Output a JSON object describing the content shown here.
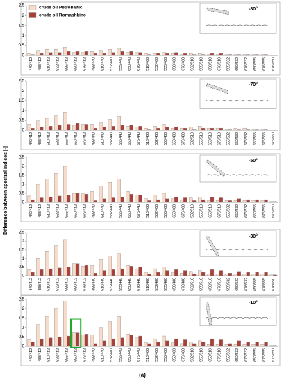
{
  "ylabel": "Difference between spectral indices [-]",
  "caption": "(a)",
  "chart_data": [
    {
      "type": "bar",
      "annotation": "-80°",
      "categories": [
        "440/412",
        "488/412",
        "510/412",
        "532/412",
        "555/412",
        "650/412",
        "676/412",
        "488/440",
        "510/440",
        "532/440",
        "555/440",
        "650/440",
        "676/440",
        "510/488",
        "532/488",
        "555/488",
        "650/488",
        "676/488",
        "532/510",
        "555/510",
        "650/510",
        "676/510",
        "555/532",
        "650/532",
        "676/532",
        "650/555",
        "676/555",
        "676/650"
      ],
      "ylim": [
        0,
        2.5
      ],
      "yticks": [
        0,
        0.5,
        1,
        1.5,
        2,
        2.5
      ],
      "legend": "upper left",
      "series": [
        {
          "name": "crude oil Petrobaltic",
          "color": "#f7dccb",
          "values": [
            0.1,
            0.25,
            0.3,
            0.3,
            0.4,
            0.15,
            0.15,
            0.2,
            0.25,
            0.3,
            0.35,
            0.15,
            0.15,
            0.1,
            0.1,
            0.15,
            0.1,
            0.05,
            0.1,
            0.1,
            0.05,
            0.05,
            0.05,
            0.05,
            0.05,
            0.05,
            0.05,
            0.02
          ]
        },
        {
          "name": "crude oil Romashkino",
          "color": "#a8403a",
          "values": [
            0.05,
            0.1,
            0.15,
            0.15,
            0.2,
            0.2,
            0.2,
            0.1,
            0.1,
            0.15,
            0.2,
            0.2,
            0.15,
            0.05,
            0.1,
            0.1,
            0.15,
            0.1,
            0.05,
            0.05,
            0.1,
            0.1,
            0.05,
            0.05,
            0.05,
            0.05,
            0.05,
            0.02
          ]
        }
      ]
    },
    {
      "type": "bar",
      "annotation": "-70°",
      "categories": [
        "440/412",
        "488/412",
        "510/412",
        "532/412",
        "555/412",
        "650/412",
        "676/412",
        "488/440",
        "510/440",
        "532/440",
        "555/440",
        "650/440",
        "676/440",
        "510/488",
        "532/488",
        "555/488",
        "650/488",
        "676/488",
        "532/510",
        "555/510",
        "650/510",
        "676/510",
        "555/532",
        "650/532",
        "676/532",
        "650/555",
        "676/555",
        "676/650"
      ],
      "ylim": [
        0,
        2.5
      ],
      "yticks": [
        0,
        0.5,
        1,
        1.5,
        2,
        2.5
      ],
      "series": [
        {
          "color": "#f7dccb",
          "values": [
            0.3,
            0.5,
            0.6,
            0.75,
            0.9,
            0.25,
            0.3,
            0.3,
            0.4,
            0.55,
            0.7,
            0.2,
            0.15,
            0.1,
            0.2,
            0.3,
            0.1,
            0.1,
            0.15,
            0.2,
            0.1,
            0.1,
            0.05,
            0.1,
            0.1,
            0.05,
            0.05,
            0.02
          ]
        },
        {
          "color": "#a8403a",
          "values": [
            0.1,
            0.15,
            0.2,
            0.25,
            0.3,
            0.35,
            0.3,
            0.1,
            0.15,
            0.2,
            0.25,
            0.25,
            0.2,
            0.05,
            0.1,
            0.15,
            0.15,
            0.1,
            0.05,
            0.1,
            0.1,
            0.1,
            0.05,
            0.05,
            0.05,
            0.05,
            0.05,
            0.02
          ]
        }
      ]
    },
    {
      "type": "bar",
      "annotation": "-50°",
      "categories": [
        "440/412",
        "488/412",
        "510/412",
        "532/412",
        "555/412",
        "650/412",
        "676/412",
        "488/440",
        "510/440",
        "532/440",
        "555/440",
        "650/440",
        "676/440",
        "510/488",
        "532/488",
        "555/488",
        "650/488",
        "676/488",
        "532/510",
        "555/510",
        "650/510",
        "676/510",
        "555/532",
        "650/532",
        "676/532",
        "650/555",
        "676/555",
        "676/650"
      ],
      "ylim": [
        0,
        2.5
      ],
      "yticks": [
        0,
        0.5,
        1,
        1.5,
        2,
        2.5
      ],
      "series": [
        {
          "color": "#f7dccb",
          "values": [
            0.35,
            1.0,
            1.3,
            1.6,
            2.0,
            0.5,
            0.5,
            0.6,
            0.9,
            1.1,
            1.3,
            0.6,
            0.4,
            0.2,
            0.4,
            0.5,
            0.2,
            0.15,
            0.25,
            0.3,
            0.1,
            0.1,
            0.1,
            0.1,
            0.1,
            0.1,
            0.1,
            0.05
          ]
        },
        {
          "color": "#a8403a",
          "values": [
            0.15,
            0.25,
            0.3,
            0.35,
            0.4,
            0.5,
            0.45,
            0.1,
            0.2,
            0.25,
            0.3,
            0.45,
            0.4,
            0.1,
            0.15,
            0.2,
            0.3,
            0.25,
            0.1,
            0.15,
            0.3,
            0.25,
            0.1,
            0.2,
            0.15,
            0.15,
            0.15,
            0.05
          ]
        }
      ]
    },
    {
      "type": "bar",
      "annotation": "-30°",
      "categories": [
        "440/412",
        "488/412",
        "510/412",
        "532/412",
        "555/412",
        "650/412",
        "676/412",
        "488/440",
        "510/440",
        "532/440",
        "555/440",
        "650/440",
        "676/440",
        "510/488",
        "532/488",
        "555/488",
        "650/488",
        "676/488",
        "532/510",
        "555/510",
        "650/510",
        "676/510",
        "555/532",
        "650/532",
        "676/532",
        "650/555",
        "676/555",
        "676/650"
      ],
      "ylim": [
        0,
        2.5
      ],
      "yticks": [
        0,
        0.5,
        1,
        1.5,
        2,
        2.5
      ],
      "series": [
        {
          "color": "#f7dccb",
          "values": [
            0.35,
            1.0,
            1.4,
            1.75,
            2.1,
            0.7,
            0.55,
            0.6,
            0.95,
            1.15,
            1.3,
            0.6,
            0.4,
            0.2,
            0.4,
            0.5,
            0.2,
            0.15,
            0.25,
            0.3,
            0.1,
            0.1,
            0.1,
            0.1,
            0.1,
            0.1,
            0.1,
            0.05
          ]
        },
        {
          "color": "#a8403a",
          "values": [
            0.2,
            0.35,
            0.4,
            0.45,
            0.5,
            0.7,
            0.6,
            0.15,
            0.3,
            0.35,
            0.4,
            0.55,
            0.5,
            0.1,
            0.2,
            0.3,
            0.35,
            0.3,
            0.1,
            0.2,
            0.35,
            0.3,
            0.15,
            0.25,
            0.2,
            0.2,
            0.2,
            0.05
          ]
        }
      ]
    },
    {
      "type": "bar",
      "annotation": "-10°",
      "categories": [
        "440/412",
        "488/412",
        "510/412",
        "532/412",
        "555/412",
        "650/412",
        "676/412",
        "488/440",
        "510/440",
        "532/440",
        "555/440",
        "650/440",
        "676/440",
        "510/488",
        "532/488",
        "555/488",
        "650/488",
        "676/488",
        "532/510",
        "555/510",
        "650/510",
        "676/510",
        "555/532",
        "650/532",
        "676/532",
        "650/555",
        "676/555",
        "676/650"
      ],
      "ylim": [
        0,
        2.5
      ],
      "yticks": [
        0,
        0.5,
        1,
        1.5,
        2,
        2.5
      ],
      "series": [
        {
          "color": "#f7dccb",
          "values": [
            0.35,
            1.15,
            1.6,
            2.0,
            2.4,
            0.75,
            0.6,
            0.6,
            1.0,
            1.3,
            1.6,
            0.65,
            0.45,
            0.2,
            0.4,
            0.55,
            0.2,
            0.15,
            0.25,
            0.3,
            0.1,
            0.1,
            0.1,
            0.1,
            0.1,
            0.1,
            0.1,
            0.05
          ]
        },
        {
          "color": "#a8403a",
          "values": [
            0.25,
            0.4,
            0.45,
            0.5,
            0.55,
            0.75,
            0.65,
            0.15,
            0.3,
            0.4,
            0.45,
            0.6,
            0.55,
            0.15,
            0.25,
            0.3,
            0.4,
            0.35,
            0.15,
            0.25,
            0.4,
            0.35,
            0.15,
            0.3,
            0.25,
            0.25,
            0.25,
            0.05
          ]
        }
      ]
    }
  ]
}
